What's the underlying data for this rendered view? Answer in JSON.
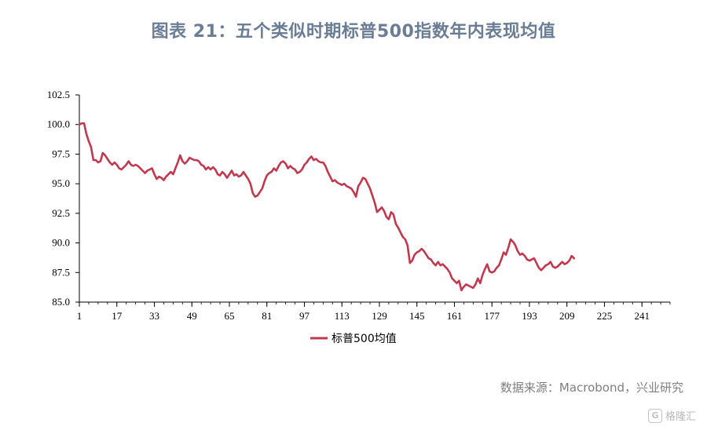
{
  "page": {
    "title": "图表 21：五个类似时期标普500指数年内表现均值",
    "source": "数据来源：Macrobond，兴业研究",
    "watermark": "格隆汇",
    "watermark_badge": "G"
  },
  "colors": {
    "title": "#6a7d94",
    "series": "#c0394f",
    "axis": "#000000",
    "source": "#7f7f7f"
  },
  "chart_data": {
    "type": "line",
    "title": "图表 21：五个类似时期标普500指数年内表现均值",
    "xlabel": "",
    "ylabel": "",
    "xlim": [
      1,
      253
    ],
    "ylim": [
      85.0,
      102.5
    ],
    "grid": false,
    "legend_position": "bottom-left",
    "x_ticks": [
      1,
      17,
      33,
      49,
      65,
      81,
      97,
      113,
      129,
      145,
      161,
      177,
      193,
      209,
      225,
      241
    ],
    "y_ticks": [
      85.0,
      87.5,
      90.0,
      92.5,
      95.0,
      97.5,
      100.0,
      102.5
    ],
    "y_tick_labels": [
      "85.0",
      "87.5",
      "90.0",
      "92.5",
      "95.0",
      "97.5",
      "100.0",
      "102.5"
    ],
    "series": [
      {
        "name": "标普500均值",
        "points": [
          [
            1,
            100.0
          ],
          [
            2,
            100.1
          ],
          [
            3,
            100.1
          ],
          [
            4,
            99.2
          ],
          [
            5,
            98.6
          ],
          [
            6,
            98.1
          ],
          [
            7,
            97.0
          ],
          [
            8,
            97.0
          ],
          [
            9,
            96.8
          ],
          [
            10,
            96.9
          ],
          [
            11,
            97.6
          ],
          [
            12,
            97.4
          ],
          [
            13,
            97.1
          ],
          [
            14,
            96.8
          ],
          [
            15,
            96.6
          ],
          [
            16,
            96.8
          ],
          [
            17,
            96.6
          ],
          [
            18,
            96.3
          ],
          [
            19,
            96.2
          ],
          [
            20,
            96.4
          ],
          [
            21,
            96.6
          ],
          [
            22,
            96.9
          ],
          [
            23,
            96.6
          ],
          [
            24,
            96.5
          ],
          [
            25,
            96.6
          ],
          [
            26,
            96.5
          ],
          [
            27,
            96.3
          ],
          [
            28,
            96.1
          ],
          [
            29,
            95.9
          ],
          [
            30,
            96.1
          ],
          [
            31,
            96.2
          ],
          [
            32,
            96.3
          ],
          [
            33,
            95.8
          ],
          [
            34,
            95.4
          ],
          [
            35,
            95.6
          ],
          [
            36,
            95.5
          ],
          [
            37,
            95.3
          ],
          [
            38,
            95.6
          ],
          [
            39,
            95.8
          ],
          [
            40,
            96.0
          ],
          [
            41,
            95.8
          ],
          [
            42,
            96.3
          ],
          [
            43,
            96.8
          ],
          [
            44,
            97.4
          ],
          [
            45,
            96.9
          ],
          [
            46,
            96.7
          ],
          [
            47,
            96.9
          ],
          [
            48,
            97.2
          ],
          [
            49,
            97.1
          ],
          [
            50,
            97.0
          ],
          [
            51,
            97.0
          ],
          [
            52,
            96.9
          ],
          [
            53,
            96.6
          ],
          [
            54,
            96.5
          ],
          [
            55,
            96.2
          ],
          [
            56,
            96.4
          ],
          [
            57,
            96.2
          ],
          [
            58,
            96.4
          ],
          [
            59,
            96.2
          ],
          [
            60,
            95.8
          ],
          [
            61,
            95.7
          ],
          [
            62,
            96.0
          ],
          [
            63,
            95.8
          ],
          [
            64,
            95.5
          ],
          [
            65,
            95.8
          ],
          [
            66,
            96.1
          ],
          [
            67,
            95.7
          ],
          [
            68,
            95.8
          ],
          [
            69,
            95.6
          ],
          [
            70,
            95.7
          ],
          [
            71,
            96.0
          ],
          [
            72,
            95.7
          ],
          [
            73,
            95.4
          ],
          [
            74,
            95.0
          ],
          [
            75,
            94.2
          ],
          [
            76,
            93.9
          ],
          [
            77,
            94.0
          ],
          [
            78,
            94.3
          ],
          [
            79,
            94.6
          ],
          [
            80,
            95.2
          ],
          [
            81,
            95.7
          ],
          [
            82,
            95.9
          ],
          [
            83,
            96.0
          ],
          [
            84,
            96.3
          ],
          [
            85,
            96.1
          ],
          [
            86,
            96.5
          ],
          [
            87,
            96.8
          ],
          [
            88,
            96.9
          ],
          [
            89,
            96.7
          ],
          [
            90,
            96.3
          ],
          [
            91,
            96.5
          ],
          [
            92,
            96.3
          ],
          [
            93,
            96.2
          ],
          [
            94,
            95.9
          ],
          [
            95,
            96.0
          ],
          [
            96,
            96.2
          ],
          [
            97,
            96.6
          ],
          [
            98,
            96.8
          ],
          [
            99,
            97.1
          ],
          [
            100,
            97.3
          ],
          [
            101,
            97.0
          ],
          [
            102,
            97.1
          ],
          [
            103,
            96.9
          ],
          [
            104,
            96.8
          ],
          [
            105,
            96.8
          ],
          [
            106,
            96.5
          ],
          [
            107,
            96.0
          ],
          [
            108,
            95.6
          ],
          [
            109,
            95.2
          ],
          [
            110,
            95.3
          ],
          [
            111,
            95.1
          ],
          [
            112,
            95.0
          ],
          [
            113,
            94.9
          ],
          [
            114,
            95.0
          ],
          [
            115,
            94.8
          ],
          [
            116,
            94.7
          ],
          [
            117,
            94.6
          ],
          [
            118,
            94.3
          ],
          [
            119,
            93.9
          ],
          [
            120,
            94.8
          ],
          [
            121,
            95.1
          ],
          [
            122,
            95.5
          ],
          [
            123,
            95.4
          ],
          [
            124,
            95.0
          ],
          [
            125,
            94.6
          ],
          [
            126,
            94.0
          ],
          [
            127,
            93.4
          ],
          [
            128,
            92.6
          ],
          [
            129,
            92.8
          ],
          [
            130,
            93.0
          ],
          [
            131,
            92.7
          ],
          [
            132,
            92.2
          ],
          [
            133,
            92.0
          ],
          [
            134,
            92.6
          ],
          [
            135,
            92.4
          ],
          [
            136,
            91.6
          ],
          [
            137,
            91.3
          ],
          [
            138,
            90.9
          ],
          [
            139,
            90.5
          ],
          [
            140,
            90.3
          ],
          [
            141,
            89.8
          ],
          [
            142,
            88.3
          ],
          [
            143,
            88.5
          ],
          [
            144,
            89.0
          ],
          [
            145,
            89.2
          ],
          [
            146,
            89.3
          ],
          [
            147,
            89.5
          ],
          [
            148,
            89.3
          ],
          [
            149,
            89.0
          ],
          [
            150,
            88.7
          ],
          [
            151,
            88.6
          ],
          [
            152,
            88.3
          ],
          [
            153,
            88.1
          ],
          [
            154,
            88.4
          ],
          [
            155,
            88.1
          ],
          [
            156,
            88.2
          ],
          [
            157,
            88.0
          ],
          [
            158,
            87.8
          ],
          [
            159,
            87.5
          ],
          [
            160,
            87.0
          ],
          [
            161,
            86.8
          ],
          [
            162,
            86.6
          ],
          [
            163,
            86.8
          ],
          [
            164,
            86.0
          ],
          [
            165,
            86.3
          ],
          [
            166,
            86.5
          ],
          [
            167,
            86.4
          ],
          [
            168,
            86.3
          ],
          [
            169,
            86.2
          ],
          [
            170,
            86.5
          ],
          [
            171,
            87.0
          ],
          [
            172,
            86.6
          ],
          [
            173,
            87.3
          ],
          [
            174,
            87.8
          ],
          [
            175,
            88.2
          ],
          [
            176,
            87.6
          ],
          [
            177,
            87.5
          ],
          [
            178,
            87.6
          ],
          [
            179,
            87.9
          ],
          [
            180,
            88.1
          ],
          [
            181,
            88.6
          ],
          [
            182,
            89.2
          ],
          [
            183,
            89.0
          ],
          [
            184,
            89.6
          ],
          [
            185,
            90.3
          ],
          [
            186,
            90.1
          ],
          [
            187,
            89.8
          ],
          [
            188,
            89.3
          ],
          [
            189,
            89.0
          ],
          [
            190,
            89.1
          ],
          [
            191,
            88.9
          ],
          [
            192,
            88.6
          ],
          [
            193,
            88.5
          ],
          [
            194,
            88.6
          ],
          [
            195,
            88.7
          ],
          [
            196,
            88.3
          ],
          [
            197,
            87.9
          ],
          [
            198,
            87.7
          ],
          [
            199,
            87.9
          ],
          [
            200,
            88.1
          ],
          [
            201,
            88.2
          ],
          [
            202,
            88.4
          ],
          [
            203,
            88.0
          ],
          [
            204,
            87.9
          ],
          [
            205,
            88.0
          ],
          [
            206,
            88.2
          ],
          [
            207,
            88.4
          ],
          [
            208,
            88.2
          ],
          [
            209,
            88.3
          ],
          [
            210,
            88.5
          ],
          [
            211,
            88.9
          ],
          [
            212,
            88.7
          ]
        ]
      }
    ]
  },
  "legend": {
    "label": "标普500均值"
  }
}
